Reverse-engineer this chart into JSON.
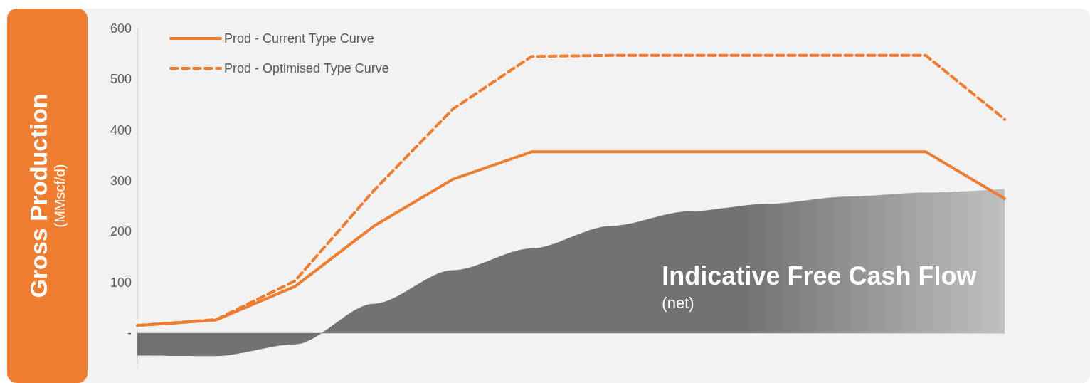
{
  "chart_data": {
    "type": "line",
    "ylabel": "Gross Production\n(MMscf/d)",
    "categories": [
      null,
      null,
      null,
      null,
      null,
      null,
      null,
      null,
      null,
      null,
      null,
      null
    ],
    "series": [
      {
        "name": "Prod - Current Type Curve",
        "color": "#ed7d31",
        "line_style": "solid",
        "values": [
          15,
          26,
          92,
          211,
          303,
          357,
          357,
          357,
          357,
          357,
          357,
          265
        ]
      },
      {
        "name": "Prod - Optimised Type Curve",
        "color": "#ed7d31",
        "line_style": "dashed",
        "values": [
          15,
          27,
          103,
          281,
          441,
          545,
          547,
          547,
          547,
          547,
          547,
          421
        ]
      },
      {
        "name": "Indicative Free Cash Flow",
        "type": "area",
        "color": "#6b6b6b",
        "values": [
          -44,
          -45,
          -22,
          58,
          124,
          167,
          211,
          240,
          255,
          269,
          277,
          284
        ]
      }
    ],
    "ylim": [
      -70,
      600
    ],
    "yticks": [
      {
        "value": 0,
        "label": "-"
      },
      100,
      200,
      300,
      400,
      500,
      600
    ],
    "tick_labels": "y",
    "marker": "none",
    "legend": "top left",
    "annotations": [
      "(net)"
    ]
  }
}
